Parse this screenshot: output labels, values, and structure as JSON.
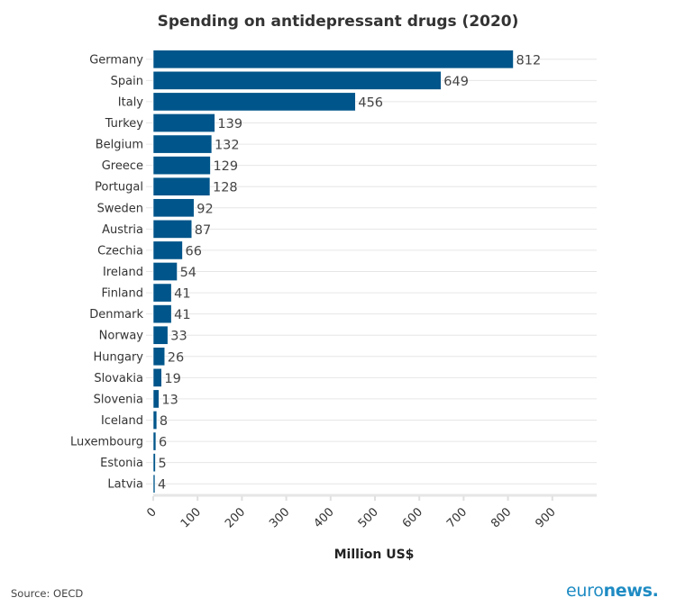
{
  "chart_data": {
    "type": "bar",
    "orientation": "horizontal",
    "title": "Spending on antidepressant drugs (2020)",
    "xlabel": "Million US$",
    "ylabel": "",
    "categories": [
      "Germany",
      "Spain",
      "Italy",
      "Turkey",
      "Belgium",
      "Greece",
      "Portugal",
      "Sweden",
      "Austria",
      "Czechia",
      "Ireland",
      "Finland",
      "Denmark",
      "Norway",
      "Hungary",
      "Slovakia",
      "Slovenia",
      "Iceland",
      "Luxembourg",
      "Estonia",
      "Latvia"
    ],
    "values": [
      812,
      649,
      456,
      139,
      132,
      129,
      128,
      92,
      87,
      66,
      54,
      41,
      41,
      33,
      26,
      19,
      13,
      8,
      6,
      5,
      4
    ],
    "xlim": [
      0,
      1000
    ],
    "xticks": [
      "0",
      "100",
      "200",
      "300",
      "400",
      "500",
      "600",
      "700",
      "800",
      "900"
    ],
    "grid": true,
    "data_labels": true,
    "bar_color": "#00558a"
  },
  "footer": {
    "source": "Source: OECD",
    "logo_light": "euro",
    "logo_bold": "news."
  }
}
